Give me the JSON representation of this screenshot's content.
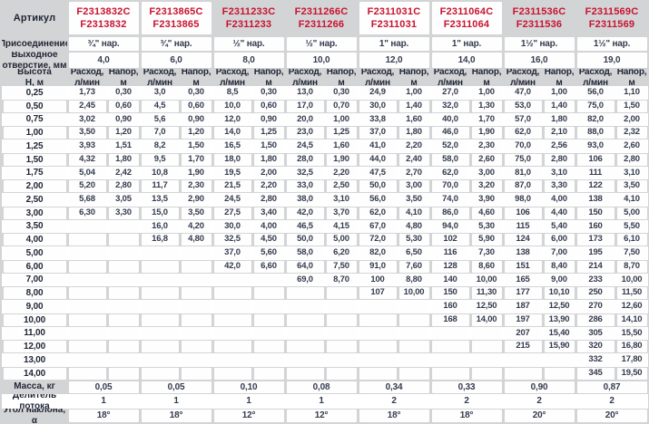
{
  "table": {
    "corner_label": "Артикул",
    "row_labels": {
      "connection": "Присоединение",
      "outlet": "Выходное\nотверстие, мм",
      "height": "Высота\nН, м",
      "flow_header": "Расход,\nл/мин",
      "head_header": "Напор,\nм",
      "mass": "Масса, кг",
      "divider": "Делитель потока",
      "angle": "Угол наклона, α"
    },
    "columns": [
      {
        "article_c": "F2313832C",
        "article": "F2313832",
        "connection": "¾\" нар.",
        "outlet": "4,0",
        "boxed": true
      },
      {
        "article_c": "F2313865C",
        "article": "F2313865",
        "connection": "¾\" нар.",
        "outlet": "6,0",
        "boxed": true
      },
      {
        "article_c": "F2311233C",
        "article": "F2311233",
        "connection": "½\" нар.",
        "outlet": "8,0",
        "boxed": false
      },
      {
        "article_c": "F2311266C",
        "article": "F2311266",
        "connection": "½\" нар.",
        "outlet": "10,0",
        "boxed": false
      },
      {
        "article_c": "F2311031C",
        "article": "F2311031",
        "connection": "1\" нар.",
        "outlet": "12,0",
        "boxed": true
      },
      {
        "article_c": "F2311064C",
        "article": "F2311064",
        "connection": "1\" нар.",
        "outlet": "14,0",
        "boxed": true
      },
      {
        "article_c": "F2311536C",
        "article": "F2311536",
        "connection": "1½\" нар.",
        "outlet": "16,0",
        "boxed": false
      },
      {
        "article_c": "F2311569C",
        "article": "F2311569",
        "connection": "1½\" нар.",
        "outlet": "19,0",
        "boxed": false
      }
    ],
    "heights": [
      "0,25",
      "0,50",
      "0,75",
      "1,00",
      "1,25",
      "1,50",
      "1,75",
      "2,00",
      "2,50",
      "3,00",
      "3,50",
      "4,00",
      "5,00",
      "6,00",
      "7,00",
      "8,00",
      "9,00",
      "10,00",
      "11,00",
      "12,00",
      "13,00",
      "14,00"
    ],
    "rows": [
      [
        [
          "1,73",
          "0,30"
        ],
        [
          "3,0",
          "0,30"
        ],
        [
          "8,5",
          "0,30"
        ],
        [
          "13,0",
          "0,30"
        ],
        [
          "24,9",
          "1,00"
        ],
        [
          "27,0",
          "1,00"
        ],
        [
          "47,0",
          "1,00"
        ],
        [
          "56,0",
          "1,10"
        ]
      ],
      [
        [
          "2,45",
          "0,60"
        ],
        [
          "4,5",
          "0,60"
        ],
        [
          "10,0",
          "0,60"
        ],
        [
          "17,0",
          "0,70"
        ],
        [
          "30,0",
          "1,40"
        ],
        [
          "32,0",
          "1,30"
        ],
        [
          "53,0",
          "1,40"
        ],
        [
          "75,0",
          "1,50"
        ]
      ],
      [
        [
          "3,02",
          "0,90"
        ],
        [
          "5,6",
          "0,90"
        ],
        [
          "12,0",
          "0,90"
        ],
        [
          "20,0",
          "1,00"
        ],
        [
          "33,8",
          "1,60"
        ],
        [
          "40,0",
          "1,70"
        ],
        [
          "57,0",
          "1,80"
        ],
        [
          "82,0",
          "2,00"
        ]
      ],
      [
        [
          "3,50",
          "1,20"
        ],
        [
          "7,0",
          "1,20"
        ],
        [
          "14,0",
          "1,25"
        ],
        [
          "23,0",
          "1,25"
        ],
        [
          "37,0",
          "1,80"
        ],
        [
          "46,0",
          "1,90"
        ],
        [
          "62,0",
          "2,10"
        ],
        [
          "88,0",
          "2,32"
        ]
      ],
      [
        [
          "3,93",
          "1,51"
        ],
        [
          "8,2",
          "1,50"
        ],
        [
          "16,5",
          "1,50"
        ],
        [
          "24,5",
          "1,60"
        ],
        [
          "41,0",
          "2,20"
        ],
        [
          "52,0",
          "2,30"
        ],
        [
          "70,0",
          "2,56"
        ],
        [
          "93,0",
          "2,60"
        ]
      ],
      [
        [
          "4,32",
          "1,80"
        ],
        [
          "9,5",
          "1,70"
        ],
        [
          "18,0",
          "1,80"
        ],
        [
          "28,0",
          "1,90"
        ],
        [
          "44,0",
          "2,40"
        ],
        [
          "58,0",
          "2,60"
        ],
        [
          "75,0",
          "2,80"
        ],
        [
          "106",
          "2,80"
        ]
      ],
      [
        [
          "5,04",
          "2,42"
        ],
        [
          "10,8",
          "1,90"
        ],
        [
          "19,5",
          "2,00"
        ],
        [
          "32,5",
          "2,20"
        ],
        [
          "47,5",
          "2,70"
        ],
        [
          "62,0",
          "3,00"
        ],
        [
          "81,0",
          "3,10"
        ],
        [
          "111",
          "3,10"
        ]
      ],
      [
        [
          "5,20",
          "2,80"
        ],
        [
          "11,7",
          "2,30"
        ],
        [
          "21,5",
          "2,20"
        ],
        [
          "33,0",
          "2,50"
        ],
        [
          "50,0",
          "3,00"
        ],
        [
          "70,0",
          "3,20"
        ],
        [
          "87,0",
          "3,30"
        ],
        [
          "122",
          "3,50"
        ]
      ],
      [
        [
          "5,68",
          "3,05"
        ],
        [
          "13,5",
          "2,90"
        ],
        [
          "24,5",
          "2,80"
        ],
        [
          "38,0",
          "3,10"
        ],
        [
          "56,0",
          "3,50"
        ],
        [
          "74,0",
          "3,90"
        ],
        [
          "98,0",
          "4,00"
        ],
        [
          "138",
          "4,10"
        ]
      ],
      [
        [
          "6,30",
          "3,30"
        ],
        [
          "15,0",
          "3,50"
        ],
        [
          "27,5",
          "3,40"
        ],
        [
          "42,0",
          "3,70"
        ],
        [
          "62,0",
          "4,10"
        ],
        [
          "86,0",
          "4,60"
        ],
        [
          "106",
          "4,40"
        ],
        [
          "150",
          "5,00"
        ]
      ],
      [
        [
          "",
          ""
        ],
        [
          "16,0",
          "4,20"
        ],
        [
          "30,0",
          "4,00"
        ],
        [
          "46,5",
          "4,15"
        ],
        [
          "67,0",
          "4,80"
        ],
        [
          "94,0",
          "5,30"
        ],
        [
          "115",
          "5,40"
        ],
        [
          "160",
          "5,50"
        ]
      ],
      [
        [
          "",
          ""
        ],
        [
          "16,8",
          "4,80"
        ],
        [
          "32,5",
          "4,50"
        ],
        [
          "50,0",
          "5,00"
        ],
        [
          "72,0",
          "5,30"
        ],
        [
          "102",
          "5,90"
        ],
        [
          "124",
          "6,00"
        ],
        [
          "173",
          "6,10"
        ]
      ],
      [
        [
          "",
          ""
        ],
        [
          "",
          ""
        ],
        [
          "37,0",
          "5,60"
        ],
        [
          "58,0",
          "6,20"
        ],
        [
          "82,0",
          "6,50"
        ],
        [
          "116",
          "7,30"
        ],
        [
          "138",
          "7,00"
        ],
        [
          "195",
          "7,50"
        ]
      ],
      [
        [
          "",
          ""
        ],
        [
          "",
          ""
        ],
        [
          "42,0",
          "6,60"
        ],
        [
          "64,0",
          "7,50"
        ],
        [
          "91,0",
          "7,60"
        ],
        [
          "128",
          "8,60"
        ],
        [
          "151",
          "8,40"
        ],
        [
          "214",
          "8,70"
        ]
      ],
      [
        [
          "",
          ""
        ],
        [
          "",
          ""
        ],
        [
          "",
          ""
        ],
        [
          "69,0",
          "8,70"
        ],
        [
          "100",
          "8,80"
        ],
        [
          "140",
          "10,00"
        ],
        [
          "165",
          "9,00"
        ],
        [
          "233",
          "10,00"
        ]
      ],
      [
        [
          "",
          ""
        ],
        [
          "",
          ""
        ],
        [
          "",
          ""
        ],
        [
          "",
          ""
        ],
        [
          "107",
          "10,00"
        ],
        [
          "150",
          "11,30"
        ],
        [
          "177",
          "10,10"
        ],
        [
          "250",
          "11,50"
        ]
      ],
      [
        [
          "",
          ""
        ],
        [
          "",
          ""
        ],
        [
          "",
          ""
        ],
        [
          "",
          ""
        ],
        [
          "",
          ""
        ],
        [
          "160",
          "12,50"
        ],
        [
          "187",
          "12,50"
        ],
        [
          "270",
          "12,60"
        ]
      ],
      [
        [
          "",
          ""
        ],
        [
          "",
          ""
        ],
        [
          "",
          ""
        ],
        [
          "",
          ""
        ],
        [
          "",
          ""
        ],
        [
          "168",
          "14,00"
        ],
        [
          "197",
          "13,90"
        ],
        [
          "286",
          "14,10"
        ]
      ],
      [
        [
          "",
          ""
        ],
        [
          "",
          ""
        ],
        [
          "",
          ""
        ],
        [
          "",
          ""
        ],
        [
          "",
          ""
        ],
        [
          "",
          ""
        ],
        [
          "207",
          "15,40"
        ],
        [
          "305",
          "15,50"
        ]
      ],
      [
        [
          "",
          ""
        ],
        [
          "",
          ""
        ],
        [
          "",
          ""
        ],
        [
          "",
          ""
        ],
        [
          "",
          ""
        ],
        [
          "",
          ""
        ],
        [
          "215",
          "15,90"
        ],
        [
          "320",
          "16,80"
        ]
      ],
      [
        [
          "",
          ""
        ],
        [
          "",
          ""
        ],
        [
          "",
          ""
        ],
        [
          "",
          ""
        ],
        [
          "",
          ""
        ],
        [
          "",
          ""
        ],
        [
          "",
          ""
        ],
        [
          "332",
          "17,80"
        ]
      ],
      [
        [
          "",
          ""
        ],
        [
          "",
          ""
        ],
        [
          "",
          ""
        ],
        [
          "",
          ""
        ],
        [
          "",
          ""
        ],
        [
          "",
          ""
        ],
        [
          "",
          ""
        ],
        [
          "345",
          "19,50"
        ]
      ]
    ],
    "mass": [
      "0,05",
      "0,05",
      "0,10",
      "0,08",
      "0,34",
      "0,33",
      "0,90",
      "0,87"
    ],
    "divider": [
      "1",
      "1",
      "1",
      "1",
      "2",
      "2",
      "2",
      "2"
    ],
    "angle": [
      "18°",
      "18°",
      "12°",
      "12°",
      "18°",
      "18°",
      "20°",
      "20°"
    ]
  },
  "colors": {
    "accent_red": "#c81430",
    "row_gray": "#d3d4d6",
    "cell_white": "#fefefe",
    "text_dark": "#343b4e"
  }
}
